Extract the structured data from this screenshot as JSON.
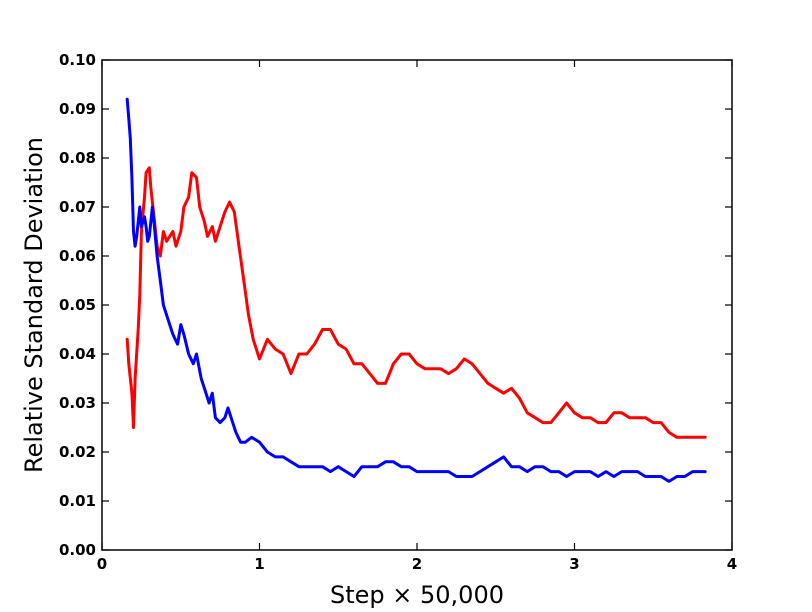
{
  "chart_data": {
    "type": "line",
    "title": "",
    "xlabel": "Step  × 50,000",
    "ylabel": "Relative Standard Deviation",
    "xlim": [
      0,
      4
    ],
    "ylim": [
      0,
      0.1
    ],
    "x_ticks": [
      0,
      1,
      2,
      3,
      4
    ],
    "x_tick_labels": [
      "0",
      "1",
      "2",
      "3",
      "4"
    ],
    "y_ticks": [
      0,
      0.01,
      0.02,
      0.03,
      0.04,
      0.05,
      0.06,
      0.07,
      0.08,
      0.09,
      0.1
    ],
    "y_tick_labels": [
      "0.00",
      "0.01",
      "0.02",
      "0.03",
      "0.04",
      "0.05",
      "0.06",
      "0.07",
      "0.08",
      "0.09",
      "0.10"
    ],
    "grid": false,
    "series": [
      {
        "color": "#ff0000",
        "x": [
          0.16,
          0.17,
          0.19,
          0.2,
          0.21,
          0.23,
          0.24,
          0.25,
          0.27,
          0.28,
          0.3,
          0.31,
          0.33,
          0.35,
          0.37,
          0.39,
          0.41,
          0.43,
          0.45,
          0.47,
          0.5,
          0.52,
          0.55,
          0.57,
          0.6,
          0.62,
          0.65,
          0.67,
          0.7,
          0.72,
          0.75,
          0.78,
          0.81,
          0.84,
          0.87,
          0.9,
          0.93,
          0.96,
          1.0,
          1.05,
          1.1,
          1.15,
          1.2,
          1.25,
          1.3,
          1.35,
          1.4,
          1.45,
          1.5,
          1.55,
          1.6,
          1.65,
          1.7,
          1.75,
          1.8,
          1.85,
          1.9,
          1.95,
          2.0,
          2.05,
          2.1,
          2.15,
          2.2,
          2.25,
          2.3,
          2.35,
          2.4,
          2.45,
          2.5,
          2.55,
          2.6,
          2.65,
          2.7,
          2.75,
          2.8,
          2.85,
          2.9,
          2.95,
          3.0,
          3.05,
          3.1,
          3.15,
          3.2,
          3.25,
          3.3,
          3.35,
          3.4,
          3.45,
          3.5,
          3.55,
          3.6,
          3.65,
          3.7,
          3.75,
          3.8,
          3.83
        ],
        "y": [
          0.043,
          0.038,
          0.032,
          0.025,
          0.035,
          0.045,
          0.052,
          0.065,
          0.072,
          0.077,
          0.078,
          0.074,
          0.068,
          0.062,
          0.06,
          0.065,
          0.063,
          0.064,
          0.065,
          0.062,
          0.065,
          0.07,
          0.072,
          0.077,
          0.076,
          0.07,
          0.067,
          0.064,
          0.066,
          0.063,
          0.066,
          0.069,
          0.071,
          0.069,
          0.062,
          0.055,
          0.048,
          0.043,
          0.039,
          0.043,
          0.041,
          0.04,
          0.036,
          0.04,
          0.04,
          0.042,
          0.045,
          0.045,
          0.042,
          0.041,
          0.038,
          0.038,
          0.036,
          0.034,
          0.034,
          0.038,
          0.04,
          0.04,
          0.038,
          0.037,
          0.037,
          0.037,
          0.036,
          0.037,
          0.039,
          0.038,
          0.036,
          0.034,
          0.033,
          0.032,
          0.033,
          0.031,
          0.028,
          0.027,
          0.026,
          0.026,
          0.028,
          0.03,
          0.028,
          0.027,
          0.027,
          0.026,
          0.026,
          0.028,
          0.028,
          0.027,
          0.027,
          0.027,
          0.026,
          0.026,
          0.024,
          0.023,
          0.023,
          0.023,
          0.023,
          0.023
        ]
      },
      {
        "color": "#0000ff",
        "x": [
          0.16,
          0.17,
          0.18,
          0.19,
          0.2,
          0.21,
          0.22,
          0.24,
          0.25,
          0.27,
          0.28,
          0.29,
          0.3,
          0.32,
          0.33,
          0.35,
          0.37,
          0.39,
          0.42,
          0.45,
          0.48,
          0.5,
          0.52,
          0.55,
          0.58,
          0.6,
          0.63,
          0.65,
          0.68,
          0.7,
          0.72,
          0.75,
          0.78,
          0.8,
          0.83,
          0.85,
          0.88,
          0.91,
          0.95,
          1.0,
          1.05,
          1.1,
          1.15,
          1.2,
          1.25,
          1.3,
          1.35,
          1.4,
          1.45,
          1.5,
          1.55,
          1.6,
          1.65,
          1.7,
          1.75,
          1.8,
          1.85,
          1.9,
          1.95,
          2.0,
          2.05,
          2.1,
          2.15,
          2.2,
          2.25,
          2.3,
          2.35,
          2.4,
          2.45,
          2.5,
          2.55,
          2.6,
          2.65,
          2.7,
          2.75,
          2.8,
          2.85,
          2.9,
          2.95,
          3.0,
          3.05,
          3.1,
          3.15,
          3.2,
          3.25,
          3.3,
          3.35,
          3.4,
          3.45,
          3.5,
          3.55,
          3.6,
          3.65,
          3.7,
          3.75,
          3.8,
          3.83
        ],
        "y": [
          0.092,
          0.088,
          0.084,
          0.076,
          0.065,
          0.062,
          0.064,
          0.07,
          0.066,
          0.068,
          0.066,
          0.063,
          0.064,
          0.07,
          0.067,
          0.06,
          0.055,
          0.05,
          0.047,
          0.044,
          0.042,
          0.046,
          0.044,
          0.04,
          0.038,
          0.04,
          0.035,
          0.033,
          0.03,
          0.032,
          0.027,
          0.026,
          0.027,
          0.029,
          0.026,
          0.024,
          0.022,
          0.022,
          0.023,
          0.022,
          0.02,
          0.019,
          0.019,
          0.018,
          0.017,
          0.017,
          0.017,
          0.017,
          0.016,
          0.017,
          0.016,
          0.015,
          0.017,
          0.017,
          0.017,
          0.018,
          0.018,
          0.017,
          0.017,
          0.016,
          0.016,
          0.016,
          0.016,
          0.016,
          0.015,
          0.015,
          0.015,
          0.016,
          0.017,
          0.018,
          0.019,
          0.017,
          0.017,
          0.016,
          0.017,
          0.017,
          0.016,
          0.016,
          0.015,
          0.016,
          0.016,
          0.016,
          0.015,
          0.016,
          0.015,
          0.016,
          0.016,
          0.016,
          0.015,
          0.015,
          0.015,
          0.014,
          0.015,
          0.015,
          0.016,
          0.016,
          0.016
        ]
      }
    ]
  }
}
